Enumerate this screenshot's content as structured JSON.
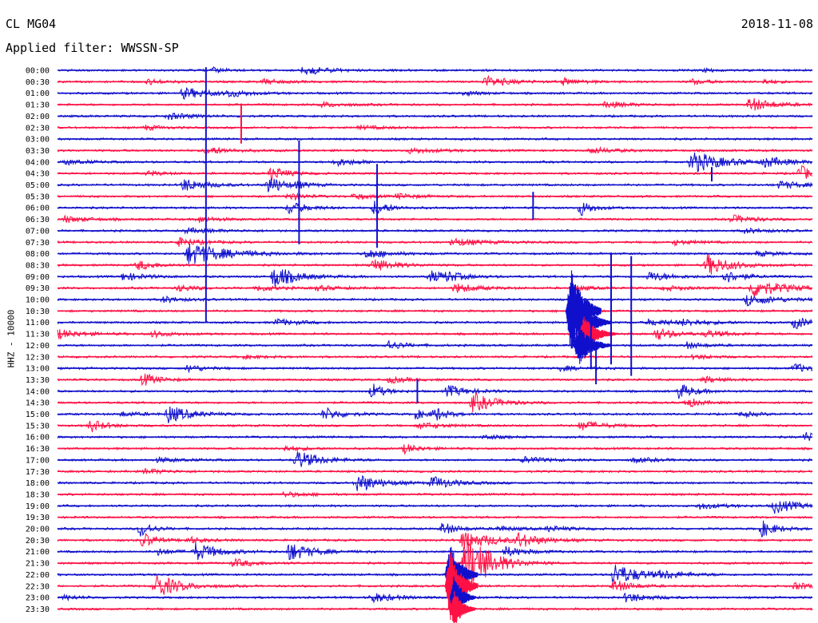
{
  "header": {
    "station": "CL MG04",
    "date": "2018-11-08",
    "filter_label": "Applied filter: WWSSN-SP"
  },
  "chart_data": {
    "type": "line",
    "title": "CL MG04",
    "subtitle": "Applied filter: WWSSN-SP",
    "date": "2018-11-08",
    "ylabel": "HHZ - 10000",
    "xlabel": "",
    "x_range_minutes": [
      0,
      30
    ],
    "rows": [
      "00:00",
      "00:30",
      "01:00",
      "01:30",
      "02:00",
      "02:30",
      "03:00",
      "03:30",
      "04:00",
      "04:30",
      "05:00",
      "05:30",
      "06:00",
      "06:30",
      "07:00",
      "07:30",
      "08:00",
      "08:30",
      "09:00",
      "09:30",
      "10:00",
      "10:30",
      "11:00",
      "11:30",
      "12:00",
      "12:30",
      "13:00",
      "13:30",
      "14:00",
      "14:30",
      "15:00",
      "15:30",
      "16:00",
      "16:30",
      "17:00",
      "17:30",
      "18:00",
      "18:30",
      "19:00",
      "19:30",
      "20:00",
      "20:30",
      "21:00",
      "21:30",
      "22:00",
      "22:30",
      "23:00",
      "23:30"
    ],
    "series_colors": [
      "#1010cc",
      "#ff1044"
    ],
    "grid": false,
    "legend": "none",
    "events": [
      {
        "row": 0,
        "t": 9.8,
        "amp": 6,
        "dur": 1.5
      },
      {
        "row": 0,
        "t": 6.2,
        "amp": 3,
        "dur": 0.8
      },
      {
        "row": 0,
        "t": 25.7,
        "amp": 2,
        "dur": 0.8
      },
      {
        "row": 1,
        "t": 3.6,
        "amp": 3,
        "dur": 1.2
      },
      {
        "row": 1,
        "t": 8.2,
        "amp": 3,
        "dur": 1.2
      },
      {
        "row": 1,
        "t": 17.0,
        "amp": 7,
        "dur": 1.5
      },
      {
        "row": 1,
        "t": 20.1,
        "amp": 4,
        "dur": 1.2
      },
      {
        "row": 1,
        "t": 25.2,
        "amp": 3,
        "dur": 1.2
      },
      {
        "row": 1,
        "t": 28.1,
        "amp": 3,
        "dur": 0.8
      },
      {
        "row": 2,
        "t": 5.0,
        "amp": 7,
        "dur": 1.8
      },
      {
        "row": 2,
        "t": 16.2,
        "amp": 3,
        "dur": 1.0
      },
      {
        "row": 2,
        "t": 6.8,
        "amp": 4,
        "dur": 1.2
      },
      {
        "row": 3,
        "t": 21.8,
        "amp": 4,
        "dur": 1.5
      },
      {
        "row": 3,
        "t": 27.5,
        "amp": 9,
        "dur": 1.5
      },
      {
        "row": 3,
        "t": 10.5,
        "amp": 3,
        "dur": 1.5
      },
      {
        "row": 4,
        "t": 4.4,
        "amp": 4,
        "dur": 1.5
      },
      {
        "row": 5,
        "t": 3.5,
        "amp": 3,
        "dur": 1.0
      },
      {
        "row": 5,
        "t": 12.0,
        "amp": 2,
        "dur": 2.0
      },
      {
        "row": 7,
        "t": 5.9,
        "amp": 5,
        "dur": 1.5
      },
      {
        "row": 7,
        "t": 14.0,
        "amp": 3,
        "dur": 2.0
      },
      {
        "row": 7,
        "t": 21.2,
        "amp": 4,
        "dur": 1.5
      },
      {
        "row": 8,
        "t": 0.3,
        "amp": 3,
        "dur": 1.5
      },
      {
        "row": 8,
        "t": 11.0,
        "amp": 5,
        "dur": 1.5
      },
      {
        "row": 8,
        "t": 25.2,
        "amp": 14,
        "dur": 2.0
      },
      {
        "row": 8,
        "t": 28.1,
        "amp": 6,
        "dur": 1.5
      },
      {
        "row": 9,
        "t": 8.5,
        "amp": 9,
        "dur": 1.0
      },
      {
        "row": 9,
        "t": 3.6,
        "amp": 3,
        "dur": 1.0
      },
      {
        "row": 9,
        "t": 29.5,
        "amp": 10,
        "dur": 1.0
      },
      {
        "row": 10,
        "t": 5.0,
        "amp": 8,
        "dur": 1.5
      },
      {
        "row": 10,
        "t": 8.4,
        "amp": 12,
        "dur": 1.0
      },
      {
        "row": 10,
        "t": 28.7,
        "amp": 5,
        "dur": 1.5
      },
      {
        "row": 10,
        "t": 9.5,
        "amp": 3,
        "dur": 1.0
      },
      {
        "row": 11,
        "t": 9.2,
        "amp": 5,
        "dur": 1.0
      },
      {
        "row": 11,
        "t": 11.8,
        "amp": 4,
        "dur": 1.0
      },
      {
        "row": 11,
        "t": 13.5,
        "amp": 3,
        "dur": 1.5
      },
      {
        "row": 12,
        "t": 9.2,
        "amp": 8,
        "dur": 1.2
      },
      {
        "row": 12,
        "t": 12.6,
        "amp": 9,
        "dur": 1.0
      },
      {
        "row": 12,
        "t": 20.8,
        "amp": 10,
        "dur": 0.8
      },
      {
        "row": 13,
        "t": 0.3,
        "amp": 4,
        "dur": 1.5
      },
      {
        "row": 13,
        "t": 5.6,
        "amp": 4,
        "dur": 1.2
      },
      {
        "row": 13,
        "t": 26.8,
        "amp": 5,
        "dur": 1.5
      },
      {
        "row": 14,
        "t": 5.1,
        "amp": 3,
        "dur": 2.0
      },
      {
        "row": 14,
        "t": 27.3,
        "amp": 3,
        "dur": 1.5
      },
      {
        "row": 15,
        "t": 4.8,
        "amp": 5,
        "dur": 1.5
      },
      {
        "row": 15,
        "t": 15.7,
        "amp": 5,
        "dur": 2.0
      },
      {
        "row": 15,
        "t": 24.5,
        "amp": 3,
        "dur": 1.5
      },
      {
        "row": 16,
        "t": 5.2,
        "amp": 14,
        "dur": 2.5
      },
      {
        "row": 16,
        "t": 12.3,
        "amp": 6,
        "dur": 1.5
      },
      {
        "row": 16,
        "t": 27.8,
        "amp": 3,
        "dur": 1.5
      },
      {
        "row": 17,
        "t": 3.2,
        "amp": 6,
        "dur": 1.2
      },
      {
        "row": 17,
        "t": 12.5,
        "amp": 8,
        "dur": 1.5
      },
      {
        "row": 17,
        "t": 25.8,
        "amp": 14,
        "dur": 1.5
      },
      {
        "row": 18,
        "t": 2.6,
        "amp": 5,
        "dur": 1.5
      },
      {
        "row": 18,
        "t": 8.6,
        "amp": 14,
        "dur": 1.5
      },
      {
        "row": 18,
        "t": 14.8,
        "amp": 7,
        "dur": 1.5
      },
      {
        "row": 18,
        "t": 15.5,
        "amp": 4,
        "dur": 1.0
      },
      {
        "row": 18,
        "t": 23.5,
        "amp": 6,
        "dur": 1.5
      },
      {
        "row": 18,
        "t": 26.5,
        "amp": 8,
        "dur": 1.2
      },
      {
        "row": 19,
        "t": 4.8,
        "amp": 4,
        "dur": 1.2
      },
      {
        "row": 19,
        "t": 8.0,
        "amp": 4,
        "dur": 1.2
      },
      {
        "row": 19,
        "t": 10.3,
        "amp": 3,
        "dur": 1.5
      },
      {
        "row": 19,
        "t": 15.8,
        "amp": 6,
        "dur": 1.5
      },
      {
        "row": 19,
        "t": 20.7,
        "amp": 3,
        "dur": 1.0
      },
      {
        "row": 19,
        "t": 24.1,
        "amp": 3,
        "dur": 1.5
      },
      {
        "row": 19,
        "t": 27.6,
        "amp": 12,
        "dur": 2.0
      },
      {
        "row": 20,
        "t": 4.2,
        "amp": 4,
        "dur": 1.2
      },
      {
        "row": 20,
        "t": 27.4,
        "amp": 7,
        "dur": 2.0
      },
      {
        "row": 22,
        "t": 8.7,
        "amp": 4,
        "dur": 1.5
      },
      {
        "row": 22,
        "t": 23.5,
        "amp": 4,
        "dur": 2.0
      },
      {
        "row": 22,
        "t": 29.3,
        "amp": 8,
        "dur": 1.0
      },
      {
        "row": 22,
        "t": 24.8,
        "amp": 3,
        "dur": 2.0
      },
      {
        "row": 23,
        "t": 0.0,
        "amp": 6,
        "dur": 1.5
      },
      {
        "row": 23,
        "t": 3.8,
        "amp": 4,
        "dur": 1.2
      },
      {
        "row": 23,
        "t": 23.8,
        "amp": 8,
        "dur": 1.2
      },
      {
        "row": 23,
        "t": 25.8,
        "amp": 4,
        "dur": 1.5
      },
      {
        "row": 24,
        "t": 13.1,
        "amp": 7,
        "dur": 1.0
      },
      {
        "row": 24,
        "t": 25.0,
        "amp": 4,
        "dur": 1.2
      },
      {
        "row": 25,
        "t": 7.4,
        "amp": 2,
        "dur": 1.5
      },
      {
        "row": 25,
        "t": 25.3,
        "amp": 3,
        "dur": 1.2
      },
      {
        "row": 26,
        "t": 5.2,
        "amp": 5,
        "dur": 1.0
      },
      {
        "row": 26,
        "t": 29.3,
        "amp": 6,
        "dur": 1.0
      },
      {
        "row": 26,
        "t": 20.0,
        "amp": 3,
        "dur": 1.5
      },
      {
        "row": 27,
        "t": 3.4,
        "amp": 8,
        "dur": 1.0
      },
      {
        "row": 27,
        "t": 13.2,
        "amp": 4,
        "dur": 1.2
      },
      {
        "row": 27,
        "t": 25.7,
        "amp": 4,
        "dur": 1.2
      },
      {
        "row": 28,
        "t": 12.5,
        "amp": 10,
        "dur": 0.8
      },
      {
        "row": 28,
        "t": 15.5,
        "amp": 7,
        "dur": 1.5
      },
      {
        "row": 28,
        "t": 24.7,
        "amp": 10,
        "dur": 1.0
      },
      {
        "row": 29,
        "t": 16.5,
        "amp": 12,
        "dur": 1.5
      },
      {
        "row": 29,
        "t": 25.0,
        "amp": 7,
        "dur": 0.8
      },
      {
        "row": 30,
        "t": 2.5,
        "amp": 3,
        "dur": 1.5
      },
      {
        "row": 30,
        "t": 4.4,
        "amp": 11,
        "dur": 1.5
      },
      {
        "row": 30,
        "t": 10.6,
        "amp": 8,
        "dur": 1.2
      },
      {
        "row": 30,
        "t": 14.2,
        "amp": 6,
        "dur": 1.0
      },
      {
        "row": 30,
        "t": 15.0,
        "amp": 8,
        "dur": 0.8
      },
      {
        "row": 30,
        "t": 27.2,
        "amp": 3,
        "dur": 1.2
      },
      {
        "row": 31,
        "t": 1.3,
        "amp": 8,
        "dur": 1.0
      },
      {
        "row": 31,
        "t": 14.4,
        "amp": 4,
        "dur": 1.5
      },
      {
        "row": 31,
        "t": 20.8,
        "amp": 6,
        "dur": 1.5
      },
      {
        "row": 32,
        "t": 17.0,
        "amp": 3,
        "dur": 1.0
      },
      {
        "row": 32,
        "t": 29.7,
        "amp": 6,
        "dur": 1.0
      },
      {
        "row": 33,
        "t": 9.0,
        "amp": 3,
        "dur": 1.5
      },
      {
        "row": 33,
        "t": 13.8,
        "amp": 6,
        "dur": 1.0
      },
      {
        "row": 34,
        "t": 4.0,
        "amp": 3,
        "dur": 1.5
      },
      {
        "row": 34,
        "t": 9.5,
        "amp": 12,
        "dur": 1.5
      },
      {
        "row": 34,
        "t": 18.5,
        "amp": 4,
        "dur": 1.5
      },
      {
        "row": 34,
        "t": 22.9,
        "amp": 3,
        "dur": 1.5
      },
      {
        "row": 35,
        "t": 3.5,
        "amp": 3,
        "dur": 1.5
      },
      {
        "row": 36,
        "t": 11.9,
        "amp": 12,
        "dur": 1.5
      },
      {
        "row": 36,
        "t": 14.9,
        "amp": 8,
        "dur": 1.5
      },
      {
        "row": 37,
        "t": 9.0,
        "amp": 3,
        "dur": 1.5
      },
      {
        "row": 38,
        "t": 25.5,
        "amp": 4,
        "dur": 1.5
      },
      {
        "row": 38,
        "t": 28.5,
        "amp": 9,
        "dur": 1.5
      },
      {
        "row": 40,
        "t": 3.3,
        "amp": 10,
        "dur": 0.8
      },
      {
        "row": 40,
        "t": 15.3,
        "amp": 8,
        "dur": 1.0
      },
      {
        "row": 40,
        "t": 28.0,
        "amp": 10,
        "dur": 1.0
      },
      {
        "row": 40,
        "t": 17.5,
        "amp": 3,
        "dur": 1.5
      },
      {
        "row": 40,
        "t": 19.5,
        "amp": 3,
        "dur": 1.5
      },
      {
        "row": 41,
        "t": 3.4,
        "amp": 10,
        "dur": 0.8
      },
      {
        "row": 41,
        "t": 5.2,
        "amp": 4,
        "dur": 1.2
      },
      {
        "row": 41,
        "t": 18.3,
        "amp": 8,
        "dur": 1.5
      },
      {
        "row": 41,
        "t": 16.1,
        "amp": 12,
        "dur": 2.0
      },
      {
        "row": 42,
        "t": 4.0,
        "amp": 4,
        "dur": 1.2
      },
      {
        "row": 42,
        "t": 5.5,
        "amp": 11,
        "dur": 1.5
      },
      {
        "row": 42,
        "t": 9.2,
        "amp": 12,
        "dur": 1.5
      },
      {
        "row": 42,
        "t": 17.8,
        "amp": 6,
        "dur": 1.5
      },
      {
        "row": 43,
        "t": 7.0,
        "amp": 5,
        "dur": 1.5
      },
      {
        "row": 43,
        "t": 16.2,
        "amp": 45,
        "dur": 1.5
      },
      {
        "row": 44,
        "t": 22.1,
        "amp": 14,
        "dur": 1.8
      },
      {
        "row": 44,
        "t": 24.0,
        "amp": 4,
        "dur": 1.5
      },
      {
        "row": 45,
        "t": 3.9,
        "amp": 16,
        "dur": 1.5
      },
      {
        "row": 45,
        "t": 22.1,
        "amp": 8,
        "dur": 1.2
      },
      {
        "row": 45,
        "t": 29.3,
        "amp": 4,
        "dur": 1.5
      },
      {
        "row": 46,
        "t": 12.5,
        "amp": 6,
        "dur": 1.5
      },
      {
        "row": 46,
        "t": 22.6,
        "amp": 6,
        "dur": 1.5
      },
      {
        "row": 46,
        "t": 0.3,
        "amp": 3,
        "dur": 1.0
      }
    ],
    "spikes": [
      {
        "row": 6,
        "t": 5.9,
        "up": 90,
        "down": 230,
        "color": "#1010cc"
      },
      {
        "row": 5,
        "t": 7.3,
        "up": 30,
        "down": 20,
        "color": "#ff1044"
      },
      {
        "row": 11,
        "t": 9.6,
        "up": 70,
        "down": 60,
        "color": "#1010cc"
      },
      {
        "row": 12,
        "t": 12.7,
        "up": 55,
        "down": 50,
        "color": "#1010cc"
      },
      {
        "row": 12,
        "t": 18.9,
        "up": 20,
        "down": 15,
        "color": "#1010cc"
      },
      {
        "row": 19,
        "t": 22.8,
        "up": 40,
        "down": 110,
        "color": "#1010cc"
      },
      {
        "row": 18,
        "t": 22.0,
        "up": 30,
        "down": 110,
        "color": "#1010cc"
      },
      {
        "row": 9,
        "t": 26.0,
        "up": 8,
        "down": 10,
        "color": "#1010cc"
      },
      {
        "row": 24,
        "t": 21.2,
        "up": 40,
        "down": 30,
        "color": "#1010cc"
      },
      {
        "row": 26,
        "t": 21.4,
        "up": 30,
        "down": 20,
        "color": "#1010cc"
      },
      {
        "row": 28,
        "t": 14.3,
        "up": 15,
        "down": 15,
        "color": "#1010cc"
      }
    ],
    "bursts": [
      {
        "row": 21,
        "t0": 20.2,
        "t1": 21.6,
        "amp": 55,
        "color": "#1010cc"
      },
      {
        "row": 22,
        "t0": 20.6,
        "t1": 22.0,
        "amp": 30,
        "color": "#1010cc"
      },
      {
        "row": 23,
        "t0": 20.7,
        "t1": 22.2,
        "amp": 22,
        "color": "#ff1044"
      },
      {
        "row": 24,
        "t0": 20.5,
        "t1": 22.0,
        "amp": 25,
        "color": "#1010cc"
      },
      {
        "row": 44,
        "t0": 15.4,
        "t1": 16.7,
        "amp": 40,
        "color": "#1010cc"
      },
      {
        "row": 45,
        "t0": 15.4,
        "t1": 16.7,
        "amp": 45,
        "color": "#ff1044"
      },
      {
        "row": 46,
        "t0": 15.6,
        "t1": 16.6,
        "amp": 28,
        "color": "#1010cc"
      },
      {
        "row": 47,
        "t0": 15.6,
        "t1": 16.6,
        "amp": 25,
        "color": "#ff1044"
      }
    ]
  }
}
